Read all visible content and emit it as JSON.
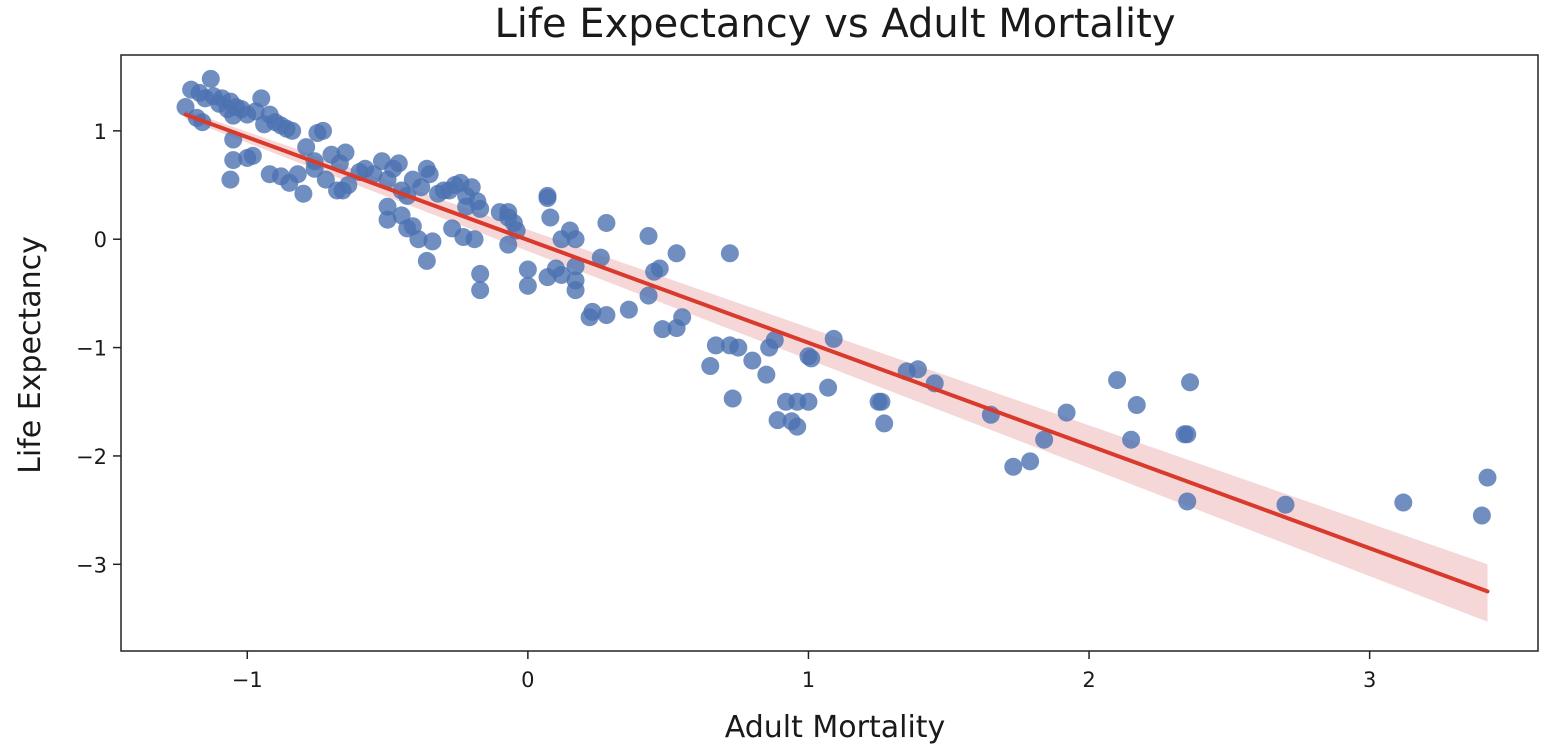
{
  "chart_data": {
    "type": "scatter",
    "title": "Life Expectancy vs Adult Mortality",
    "xlabel": "Adult Mortality",
    "ylabel": "Life Expectancy",
    "xlim": [
      -1.45,
      3.6
    ],
    "ylim": [
      -3.8,
      1.7
    ],
    "x_ticks": [
      -1,
      0,
      1,
      2,
      3
    ],
    "x_tick_labels": [
      "−1",
      "0",
      "1",
      "2",
      "3"
    ],
    "y_ticks": [
      1,
      0,
      -1,
      -2,
      -3
    ],
    "y_tick_labels": [
      "1",
      "0",
      "−1",
      "−2",
      "−3"
    ],
    "grid": false,
    "legend": "none",
    "colors": {
      "points": "#4c72b0",
      "line": "#d93a2b",
      "band": "#f2c9c9"
    },
    "series": [
      {
        "kind": "scatter",
        "points": [
          [
            -1.22,
            1.22
          ],
          [
            -1.2,
            1.38
          ],
          [
            -1.18,
            1.12
          ],
          [
            -1.17,
            1.35
          ],
          [
            -1.16,
            1.08
          ],
          [
            -1.15,
            1.3
          ],
          [
            -1.13,
            1.48
          ],
          [
            -1.12,
            1.32
          ],
          [
            -1.1,
            1.25
          ],
          [
            -1.09,
            1.3
          ],
          [
            -1.07,
            1.2
          ],
          [
            -1.06,
            1.27
          ],
          [
            -1.05,
            1.14
          ],
          [
            -1.04,
            1.22
          ],
          [
            -1.02,
            1.2
          ],
          [
            -1.0,
            1.15
          ],
          [
            -0.97,
            1.18
          ],
          [
            -0.95,
            1.3
          ],
          [
            -0.94,
            1.06
          ],
          [
            -0.92,
            1.15
          ],
          [
            -0.9,
            1.08
          ],
          [
            -0.88,
            1.05
          ],
          [
            -0.86,
            1.02
          ],
          [
            -0.84,
            1.0
          ],
          [
            -0.75,
            0.98
          ],
          [
            -0.73,
            1.0
          ],
          [
            -0.7,
            0.78
          ],
          [
            -0.65,
            0.8
          ],
          [
            -0.79,
            0.85
          ],
          [
            -0.76,
            0.72
          ],
          [
            -0.67,
            0.7
          ],
          [
            -1.05,
            0.92
          ],
          [
            -1.06,
            0.55
          ],
          [
            -1.05,
            0.73
          ],
          [
            -1.0,
            0.75
          ],
          [
            -0.98,
            0.77
          ],
          [
            -0.92,
            0.6
          ],
          [
            -0.88,
            0.58
          ],
          [
            -0.85,
            0.52
          ],
          [
            -0.82,
            0.6
          ],
          [
            -0.8,
            0.42
          ],
          [
            -0.76,
            0.65
          ],
          [
            -0.72,
            0.55
          ],
          [
            -0.68,
            0.45
          ],
          [
            -0.66,
            0.45
          ],
          [
            -0.64,
            0.5
          ],
          [
            -0.6,
            0.62
          ],
          [
            -0.58,
            0.65
          ],
          [
            -0.55,
            0.6
          ],
          [
            -0.52,
            0.72
          ],
          [
            -0.5,
            0.55
          ],
          [
            -0.48,
            0.65
          ],
          [
            -0.46,
            0.7
          ],
          [
            -0.45,
            0.45
          ],
          [
            -0.43,
            0.4
          ],
          [
            -0.41,
            0.55
          ],
          [
            -0.38,
            0.48
          ],
          [
            -0.36,
            0.65
          ],
          [
            -0.35,
            0.6
          ],
          [
            -0.32,
            0.42
          ],
          [
            -0.3,
            0.45
          ],
          [
            -0.28,
            0.45
          ],
          [
            -0.26,
            0.5
          ],
          [
            -0.24,
            0.52
          ],
          [
            -0.22,
            0.4
          ],
          [
            -0.2,
            0.48
          ],
          [
            -0.18,
            0.35
          ],
          [
            -0.17,
            0.28
          ],
          [
            -0.22,
            0.3
          ],
          [
            -0.5,
            0.3
          ],
          [
            -0.5,
            0.18
          ],
          [
            -0.45,
            0.22
          ],
          [
            -0.43,
            0.1
          ],
          [
            -0.41,
            0.12
          ],
          [
            -0.39,
            0.0
          ],
          [
            -0.36,
            -0.2
          ],
          [
            -0.34,
            -0.02
          ],
          [
            -0.27,
            0.1
          ],
          [
            -0.23,
            0.02
          ],
          [
            -0.19,
            0.0
          ],
          [
            -0.17,
            -0.32
          ],
          [
            -0.17,
            -0.47
          ],
          [
            -0.1,
            0.25
          ],
          [
            -0.07,
            0.25
          ],
          [
            -0.07,
            0.2
          ],
          [
            -0.05,
            0.15
          ],
          [
            -0.04,
            0.08
          ],
          [
            -0.07,
            -0.05
          ],
          [
            0.0,
            -0.28
          ],
          [
            0.0,
            -0.43
          ],
          [
            0.07,
            0.4
          ],
          [
            0.07,
            0.38
          ],
          [
            0.08,
            0.2
          ],
          [
            0.07,
            -0.35
          ],
          [
            0.1,
            -0.27
          ],
          [
            0.12,
            -0.33
          ],
          [
            0.12,
            0.0
          ],
          [
            0.15,
            0.08
          ],
          [
            0.17,
            0.0
          ],
          [
            0.17,
            -0.25
          ],
          [
            0.17,
            -0.38
          ],
          [
            0.17,
            -0.47
          ],
          [
            0.22,
            -0.72
          ],
          [
            0.23,
            -0.67
          ],
          [
            0.26,
            -0.17
          ],
          [
            0.28,
            0.15
          ],
          [
            0.28,
            -0.7
          ],
          [
            0.36,
            -0.65
          ],
          [
            0.43,
            0.03
          ],
          [
            0.43,
            -0.52
          ],
          [
            0.45,
            -0.3
          ],
          [
            0.47,
            -0.27
          ],
          [
            0.48,
            -0.83
          ],
          [
            0.53,
            -0.13
          ],
          [
            0.53,
            -0.82
          ],
          [
            0.55,
            -0.72
          ],
          [
            0.65,
            -1.17
          ],
          [
            0.67,
            -0.98
          ],
          [
            0.72,
            -0.98
          ],
          [
            0.73,
            -1.47
          ],
          [
            0.75,
            -1.0
          ],
          [
            0.72,
            -0.13
          ],
          [
            0.8,
            -1.12
          ],
          [
            0.85,
            -1.25
          ],
          [
            0.86,
            -1.0
          ],
          [
            0.88,
            -0.93
          ],
          [
            0.89,
            -1.67
          ],
          [
            0.92,
            -1.5
          ],
          [
            0.94,
            -1.68
          ],
          [
            0.96,
            -1.73
          ],
          [
            0.96,
            -1.5
          ],
          [
            1.0,
            -1.5
          ],
          [
            1.0,
            -1.08
          ],
          [
            1.01,
            -1.1
          ],
          [
            1.07,
            -1.37
          ],
          [
            1.09,
            -0.92
          ],
          [
            1.25,
            -1.5
          ],
          [
            1.26,
            -1.5
          ],
          [
            1.27,
            -1.7
          ],
          [
            1.35,
            -1.22
          ],
          [
            1.39,
            -1.2
          ],
          [
            1.45,
            -1.33
          ],
          [
            1.65,
            -1.62
          ],
          [
            1.73,
            -2.1
          ],
          [
            1.79,
            -2.05
          ],
          [
            1.84,
            -1.85
          ],
          [
            1.92,
            -1.6
          ],
          [
            2.1,
            -1.3
          ],
          [
            2.15,
            -1.85
          ],
          [
            2.17,
            -1.53
          ],
          [
            2.34,
            -1.8
          ],
          [
            2.35,
            -1.8
          ],
          [
            2.35,
            -2.42
          ],
          [
            2.36,
            -1.32
          ],
          [
            2.7,
            -2.45
          ],
          [
            3.12,
            -2.43
          ],
          [
            3.4,
            -2.55
          ],
          [
            3.42,
            -2.2
          ]
        ]
      },
      {
        "kind": "regression",
        "x": [
          -1.22,
          3.42
        ],
        "y": [
          1.15,
          -3.25
        ],
        "ci_upper": [
          1.19,
          -3.0
        ],
        "ci_lower": [
          1.11,
          -3.53
        ]
      }
    ]
  }
}
